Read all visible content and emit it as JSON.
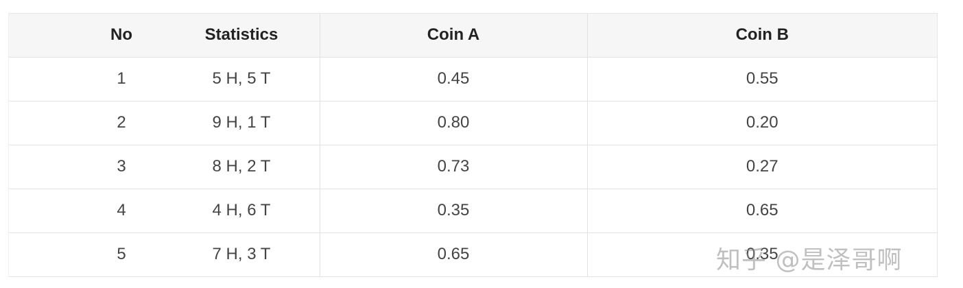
{
  "table": {
    "headers": [
      "No",
      "Statistics",
      "Coin A",
      "Coin B"
    ],
    "rows": [
      {
        "no": "1",
        "stats": "5 H, 5 T",
        "coin_a": "0.45",
        "coin_b": "0.55"
      },
      {
        "no": "2",
        "stats": "9 H, 1 T",
        "coin_a": "0.80",
        "coin_b": "0.20"
      },
      {
        "no": "3",
        "stats": "8 H, 2 T",
        "coin_a": "0.73",
        "coin_b": "0.27"
      },
      {
        "no": "4",
        "stats": "4 H, 6 T",
        "coin_a": "0.35",
        "coin_b": "0.65"
      },
      {
        "no": "5",
        "stats": "7 H, 3 T",
        "coin_a": "0.65",
        "coin_b": "0.35"
      }
    ]
  },
  "watermark": {
    "text": "知乎 @是泽哥啊"
  }
}
